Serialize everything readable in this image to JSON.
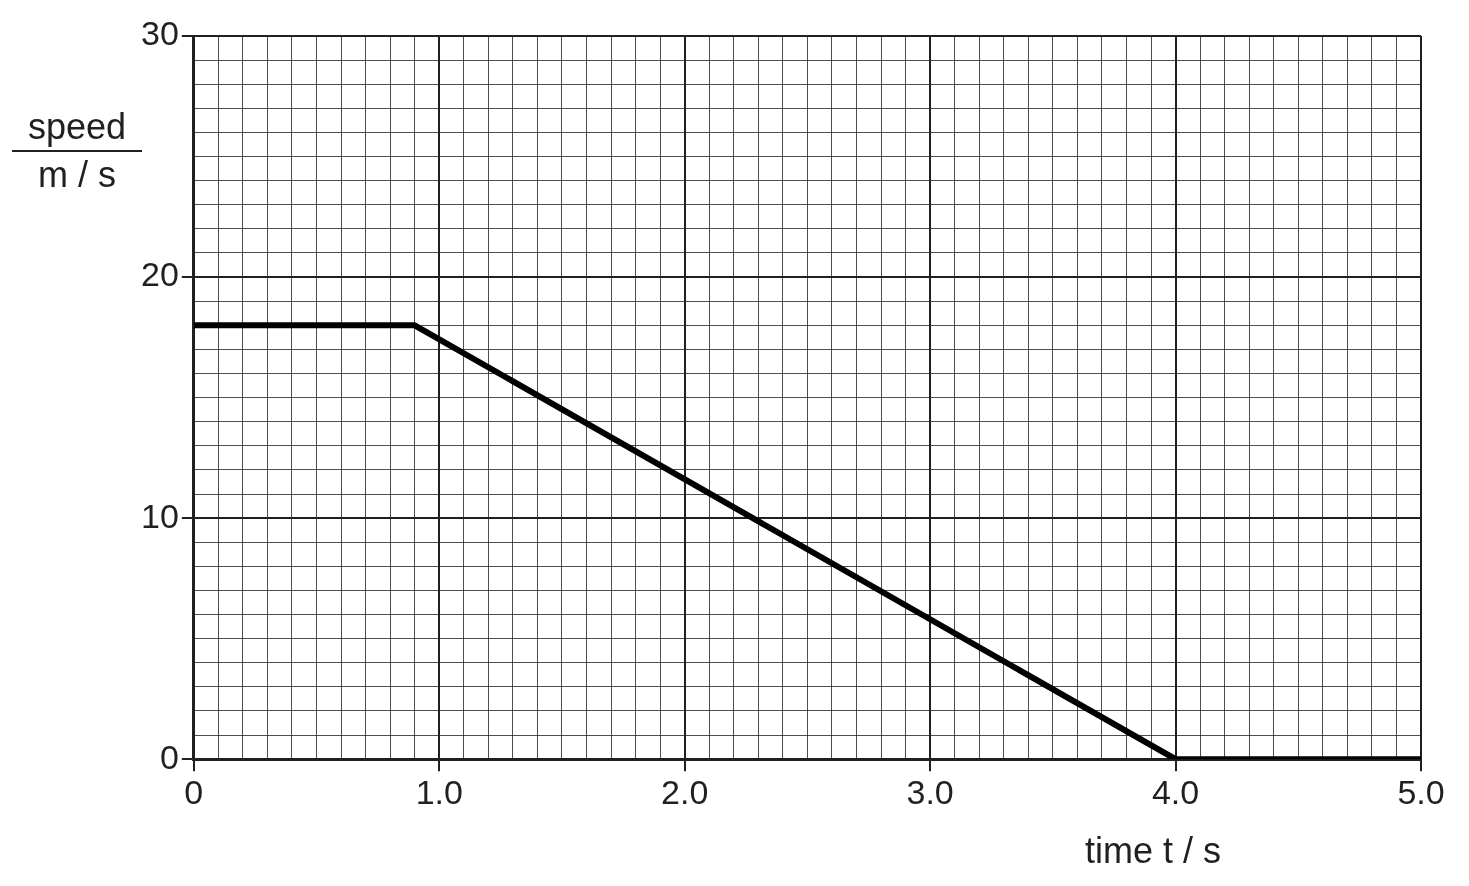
{
  "chart_data": {
    "type": "line",
    "xlabel": "time t / s",
    "ylabel": "speed\nm / s",
    "series": [
      {
        "color": "#000000",
        "x": [
          0,
          0.9,
          4.0,
          5.0
        ],
        "values": [
          18,
          18,
          0,
          0
        ]
      }
    ],
    "xlim": [
      0,
      5
    ],
    "ylim": [
      0,
      30
    ],
    "xticks": [
      0,
      {
        "value": 0.1,
        "label": null
      },
      {
        "value": 0.2,
        "label": null
      },
      {
        "value": 0.3,
        "label": null
      },
      {
        "value": 0.4,
        "label": null
      },
      {
        "value": 0.5,
        "label": null
      },
      {
        "value": 0.6,
        "label": null
      },
      {
        "value": 0.7,
        "label": null
      },
      {
        "value": 0.8,
        "label": null
      },
      {
        "value": 0.9,
        "label": null
      },
      "1.0",
      {
        "value": 1.1,
        "label": null
      },
      {
        "value": 1.2,
        "label": null
      },
      {
        "value": 1.3,
        "label": null
      },
      {
        "value": 1.4,
        "label": null
      },
      {
        "value": 1.5,
        "label": null
      },
      {
        "value": 1.6,
        "label": null
      },
      {
        "value": 1.7,
        "label": null
      },
      {
        "value": 1.8,
        "label": null
      },
      {
        "value": 1.9,
        "label": null
      },
      {
        "value": 2,
        "label": "2.0"
      },
      {
        "value": 2.1,
        "label": null
      },
      {
        "value": 2.2,
        "label": null
      },
      {
        "value": 2.3,
        "label": null
      },
      {
        "value": 2.4,
        "label": null
      },
      {
        "value": 2.5,
        "label": null
      },
      {
        "value": 2.6,
        "label": null
      },
      {
        "value": 2.7,
        "label": null
      },
      {
        "value": 2.8,
        "label": null
      },
      {
        "value": 2.9,
        "label": null
      },
      {
        "value": 3,
        "label": "3.0"
      },
      {
        "value": 3.1,
        "label": null
      },
      {
        "value": 3.2,
        "label": null
      },
      {
        "value": 3.3,
        "label": null
      },
      {
        "value": 3.4,
        "label": null
      },
      {
        "value": 3.5,
        "label": null
      },
      {
        "value": 3.6,
        "label": null
      },
      {
        "value": 3.7,
        "label": null
      },
      {
        "value": 3.8,
        "label": null
      },
      {
        "value": 3.9,
        "label": null
      },
      {
        "value": 4,
        "label": "4.0"
      },
      {
        "value": 4.1,
        "label": null
      },
      {
        "value": 4.2,
        "label": null
      },
      {
        "value": 4.3,
        "label": null
      },
      {
        "value": 4.4,
        "label": null
      },
      {
        "value": 4.5,
        "label": null
      },
      {
        "value": 4.6,
        "label": null
      },
      {
        "value": 4.7,
        "label": null
      },
      {
        "value": 4.8,
        "label": null
      },
      {
        "value": 4.9,
        "label": null
      },
      {
        "value": 5,
        "label": "5.0"
      }
    ],
    "yticks": [
      0,
      {
        "value": 1,
        "label": null
      },
      {
        "value": 2,
        "label": null
      },
      {
        "value": 3,
        "label": null
      },
      {
        "value": 4,
        "label": null
      },
      {
        "value": 5,
        "label": null
      },
      {
        "value": 6,
        "label": null
      },
      {
        "value": 7,
        "label": null
      },
      {
        "value": 8,
        "label": null
      },
      {
        "value": 9,
        "label": null
      },
      10,
      {
        "value": 11,
        "label": null
      },
      {
        "value": 12,
        "label": null
      },
      {
        "value": 13,
        "label": null
      },
      {
        "value": 14,
        "label": null
      },
      {
        "value": 15,
        "label": null
      },
      {
        "value": 16,
        "label": null
      },
      {
        "value": 17,
        "label": null
      },
      {
        "value": 18,
        "label": null
      },
      {
        "value": 19,
        "label": null
      },
      20,
      {
        "value": 21,
        "label": null
      },
      {
        "value": 22,
        "label": null
      },
      {
        "value": 23,
        "label": null
      },
      {
        "value": 24,
        "label": null
      },
      {
        "value": 25,
        "label": null
      },
      {
        "value": 26,
        "label": null
      },
      {
        "value": 27,
        "label": null
      },
      {
        "value": 28,
        "label": null
      },
      {
        "value": 29,
        "label": null
      },
      30
    ],
    "grid": true,
    "legend": false,
    "marker": "none",
    "line_style": "solid"
  }
}
